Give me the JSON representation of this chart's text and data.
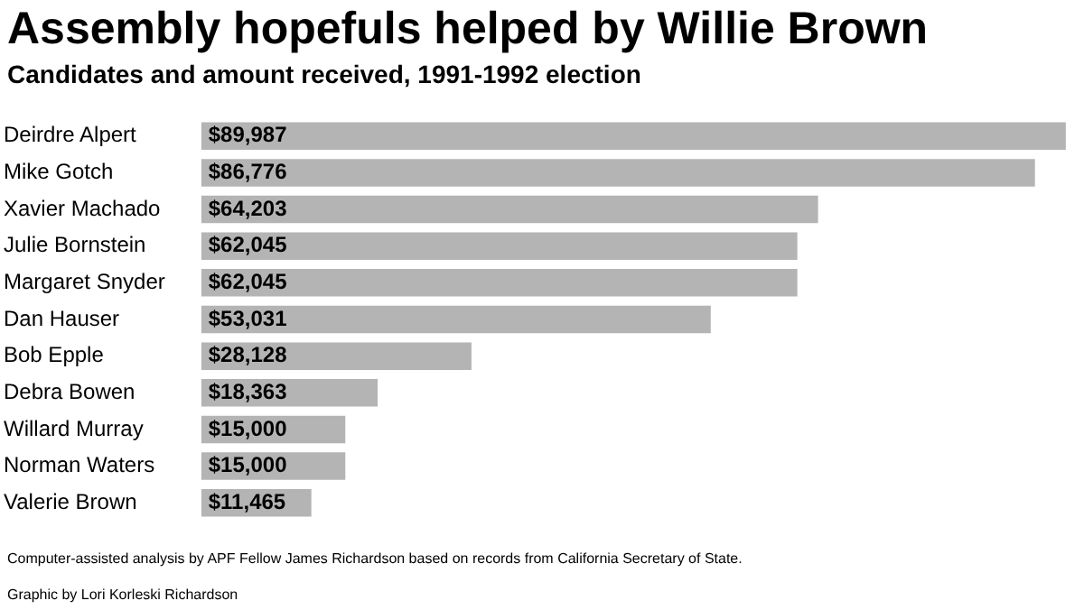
{
  "chart_data": {
    "type": "bar",
    "orientation": "horizontal",
    "title": "Assembly hopefuls helped by Willie Brown",
    "subtitle": "Candidates and amount received, 1991-1992 election",
    "categories": [
      "Deirdre Alpert",
      "Mike Gotch",
      "Xavier Machado",
      "Julie Bornstein",
      "Margaret Snyder",
      "Dan Hauser",
      "Bob Epple",
      "Debra Bowen",
      "Willard Murray",
      "Norman Waters",
      "Valerie Brown"
    ],
    "values": [
      89987,
      86776,
      64203,
      62045,
      62045,
      53031,
      28128,
      18363,
      15000,
      15000,
      11465
    ],
    "value_labels": [
      "$89,987",
      "$86,776",
      "$64,203",
      "$62,045",
      "$62,045",
      "$53,031",
      "$28,128",
      "$18,363",
      "$15,000",
      "$15,000",
      "$11,465"
    ],
    "color": "#b4b4b4",
    "xlim": [
      0,
      90000
    ],
    "tick_labels": "y",
    "legend": false,
    "annotations": [
      "Computer-assisted analysis by APF Fellow James Richardson based on records from California Secretary of State.",
      "Graphic by Lori Korleski Richardson"
    ]
  }
}
